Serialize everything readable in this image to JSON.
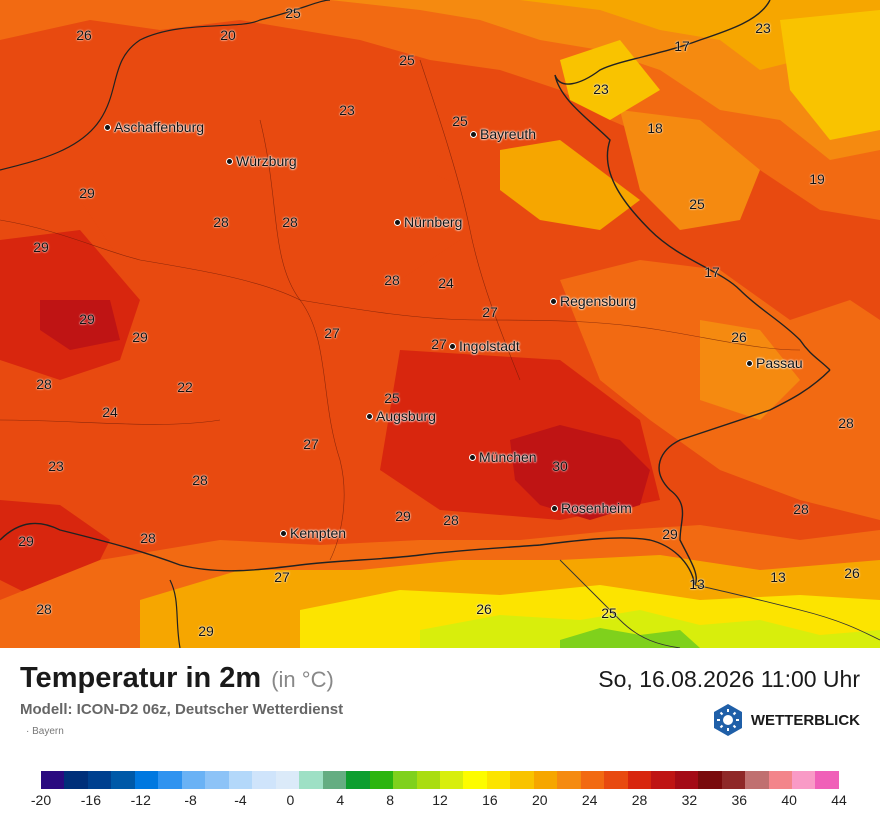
{
  "map": {
    "region_labels": [
      {
        "value": "25"
      },
      {
        "value": "26"
      },
      {
        "value": "20"
      },
      {
        "value": "25"
      },
      {
        "value": "17"
      },
      {
        "value": "23"
      },
      {
        "value": "23"
      },
      {
        "value": "23"
      },
      {
        "value": "25"
      },
      {
        "value": "18"
      },
      {
        "value": "19"
      },
      {
        "value": "29"
      },
      {
        "value": "28"
      },
      {
        "value": "28"
      },
      {
        "value": "25"
      },
      {
        "value": "29"
      },
      {
        "value": "28"
      },
      {
        "value": "24"
      },
      {
        "value": "17"
      },
      {
        "value": "29"
      },
      {
        "value": "29"
      },
      {
        "value": "27"
      },
      {
        "value": "27"
      },
      {
        "value": "27"
      },
      {
        "value": "26"
      },
      {
        "value": "28"
      },
      {
        "value": "22"
      },
      {
        "value": "25"
      },
      {
        "value": "24"
      },
      {
        "value": "27"
      },
      {
        "value": "28"
      },
      {
        "value": "23"
      },
      {
        "value": "30"
      },
      {
        "value": "28"
      },
      {
        "value": "29"
      },
      {
        "value": "28"
      },
      {
        "value": "28"
      },
      {
        "value": "29"
      },
      {
        "value": "29"
      },
      {
        "value": "27"
      },
      {
        "value": "13"
      },
      {
        "value": "13"
      },
      {
        "value": "26"
      },
      {
        "value": "28"
      },
      {
        "value": "26"
      },
      {
        "value": "25"
      },
      {
        "value": "29"
      }
    ],
    "cities": [
      {
        "name": "Aschaffenburg"
      },
      {
        "name": "Würzburg"
      },
      {
        "name": "Bayreuth"
      },
      {
        "name": "Nürnberg"
      },
      {
        "name": "Regensburg"
      },
      {
        "name": "Ingolstadt"
      },
      {
        "name": "Passau"
      },
      {
        "name": "Augsburg"
      },
      {
        "name": "München"
      },
      {
        "name": "Rosenheim"
      },
      {
        "name": "Kempten"
      }
    ]
  },
  "footer": {
    "title": "Temperatur in 2m",
    "unit": "(in °C)",
    "datetime": "So, 16.08.2026 11:00 Uhr",
    "model": "Modell: ICON-D2 06z, Deutscher Wetterdienst",
    "region": "· Bayern",
    "brand": "WETTERBLICK"
  },
  "legend": {
    "colors": [
      "#2a0a80",
      "#002f7a",
      "#00408f",
      "#0059a8",
      "#0078e0",
      "#2f93f0",
      "#6ab2f5",
      "#8dc3f7",
      "#b3d8fa",
      "#cfe4fb",
      "#dbeaf9",
      "#9ee0c5",
      "#64ad82",
      "#0c9e2f",
      "#2cb50f",
      "#7fd11c",
      "#a9dd10",
      "#d8ee0c",
      "#fdfc00",
      "#fce400",
      "#f9c300",
      "#f6a600",
      "#f58a10",
      "#f26a12",
      "#e84a10",
      "#d8260e",
      "#bf1414",
      "#a40a16",
      "#7a0a0c",
      "#8f2828",
      "#c07070",
      "#f3858a",
      "#f99ac6",
      "#f060b8"
    ],
    "labels": [
      "-20",
      "-16",
      "-12",
      "-8",
      "-4",
      "0",
      "4",
      "8",
      "12",
      "16",
      "20",
      "24",
      "28",
      "32",
      "36",
      "40",
      "44"
    ]
  }
}
